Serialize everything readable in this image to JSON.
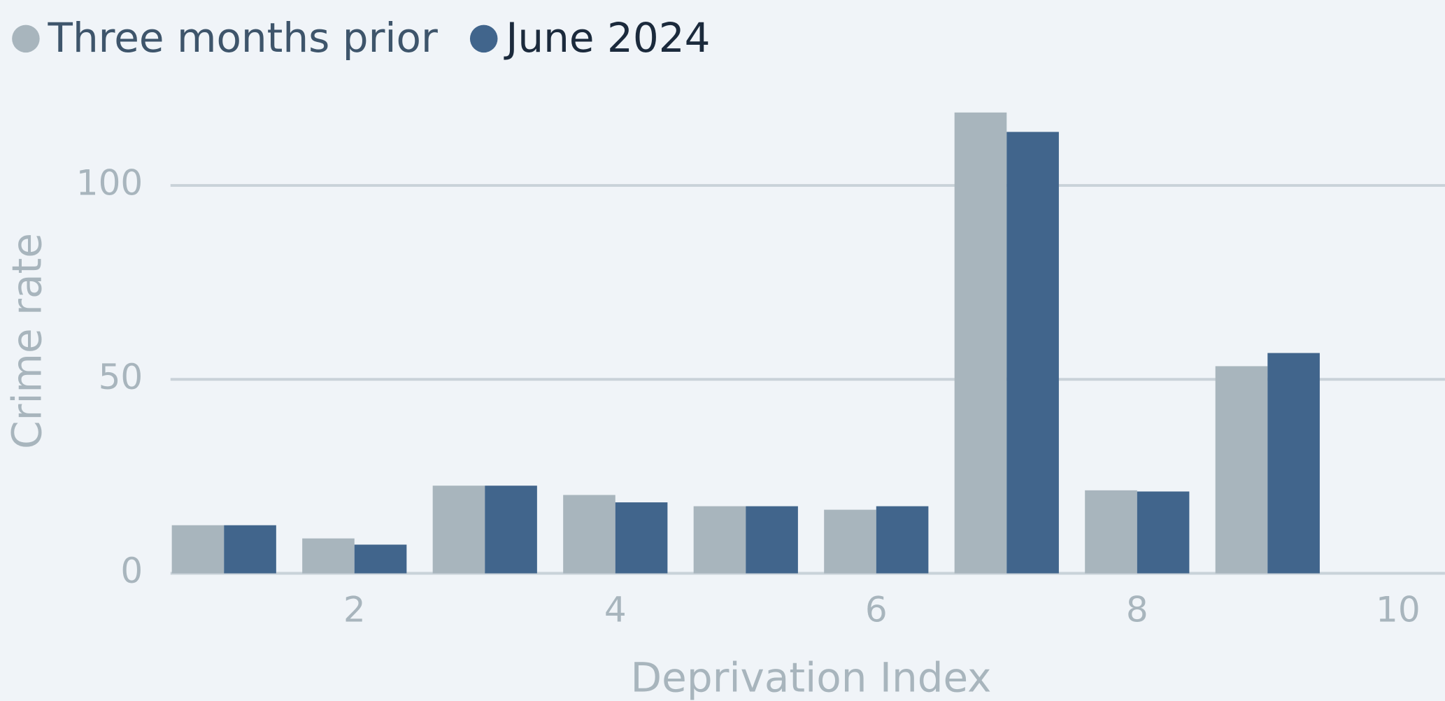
{
  "chart_data": {
    "type": "bar",
    "x_label": "Deprivation Index",
    "y_label": "Crime rate",
    "x": [
      1,
      2,
      3,
      4,
      5,
      6,
      7,
      8,
      9
    ],
    "series": [
      {
        "name": "Three months prior",
        "color": "#a8b5bd",
        "values": [
          12.4,
          9.0,
          22.6,
          20.2,
          17.3,
          16.4,
          118.8,
          21.4,
          53.4
        ]
      },
      {
        "name": "June 2024",
        "color": "#41658c",
        "values": [
          12.4,
          7.4,
          22.6,
          18.3,
          17.3,
          17.3,
          113.8,
          21.1,
          56.8
        ]
      }
    ],
    "xlim": [
      0.59,
      10.36
    ],
    "xticks": [
      2,
      4,
      6,
      8,
      10
    ],
    "ylim": [
      0,
      120
    ],
    "yticks": [
      0,
      50,
      100
    ],
    "grid": true,
    "legend": "top-left"
  }
}
